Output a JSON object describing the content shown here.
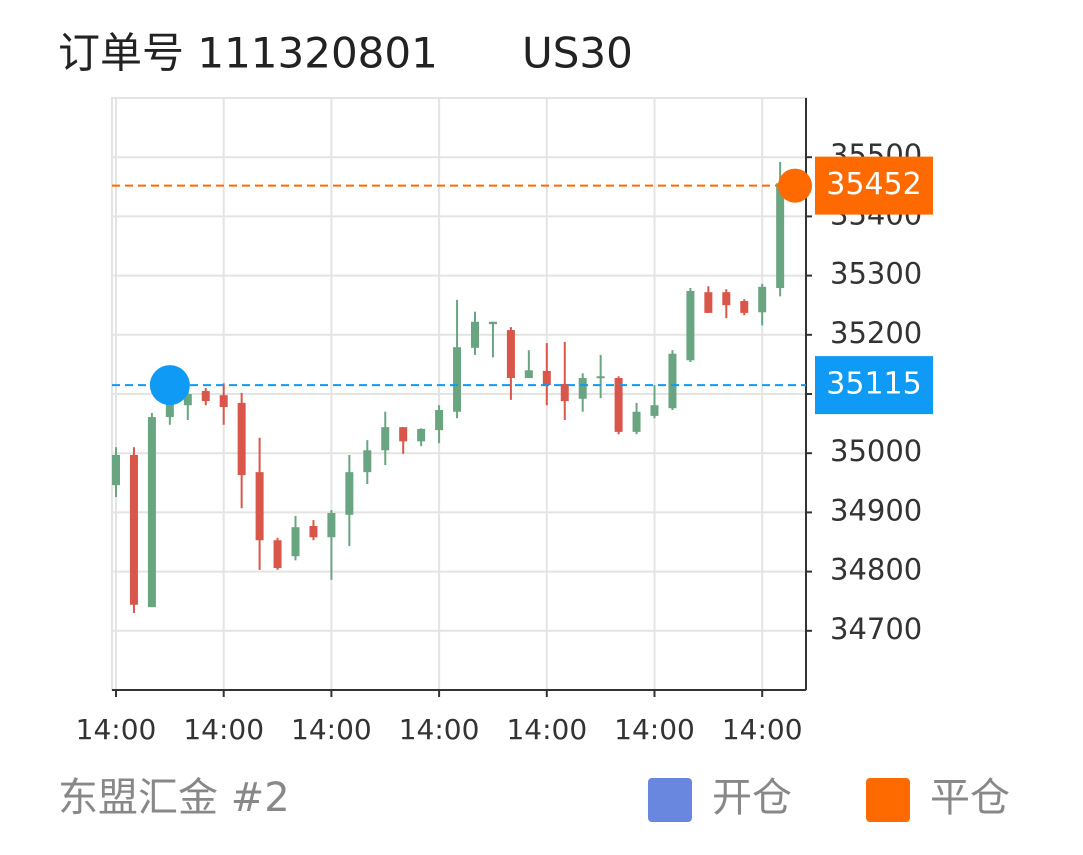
{
  "chart_data": {
    "type": "candlestick",
    "title": "订单号 111320801",
    "symbol": "US30",
    "footer": "东盟汇金 #2",
    "categories": [
      "14:00",
      null,
      null,
      null,
      null,
      null,
      "14:00",
      null,
      null,
      null,
      null,
      null,
      "14:00",
      null,
      null,
      null,
      null,
      null,
      "14:00",
      null,
      null,
      null,
      null,
      null,
      "14:00",
      null,
      null,
      null,
      null,
      null,
      "14:00",
      null,
      null,
      null,
      null,
      null,
      "14:00",
      null
    ],
    "open": [
      34946,
      34997,
      34740,
      35061,
      35081,
      35105,
      35098,
      35085,
      34968,
      34853,
      34826,
      34877,
      34858,
      34896,
      34968,
      35005,
      35044,
      35020,
      35039,
      35070,
      35178,
      35218,
      35208,
      35127,
      35139,
      35117,
      35092,
      35127,
      35127,
      35036,
      35063,
      35076,
      35157,
      35272,
      35272,
      35257,
      35238,
      35279
    ],
    "high": [
      35010,
      35010,
      35068,
      35095,
      35110,
      35110,
      35118,
      35102,
      35026,
      34857,
      34894,
      34887,
      34904,
      34997,
      35022,
      35070,
      35044,
      35042,
      35081,
      35259,
      35239,
      35222,
      35213,
      35174,
      35186,
      35188,
      35135,
      35166,
      35130,
      35085,
      35115,
      35174,
      35279,
      35282,
      35277,
      35260,
      35286,
      35492
    ],
    "low": [
      34926,
      34730,
      34740,
      35048,
      35056,
      35081,
      35048,
      34907,
      34803,
      34803,
      34819,
      34853,
      34786,
      34843,
      34948,
      34980,
      34999,
      35012,
      35017,
      35059,
      35166,
      35162,
      35090,
      35127,
      35081,
      35056,
      35070,
      35093,
      35032,
      35032,
      35059,
      35073,
      35154,
      35237,
      35228,
      35233,
      35216,
      35265
    ],
    "close": [
      34997,
      34744,
      35061,
      35085,
      35100,
      35088,
      35078,
      34963,
      34853,
      34806,
      34875,
      34858,
      34899,
      34968,
      35005,
      35044,
      35020,
      35041,
      35073,
      35179,
      35222,
      35222,
      35127,
      35140,
      35115,
      35088,
      35127,
      35130,
      35036,
      35070,
      35081,
      35168,
      35274,
      35237,
      35250,
      35237,
      35281,
      35456
    ],
    "up_color": "#6aa582",
    "down_color": "#d9574a",
    "ylim": [
      34600,
      35600
    ],
    "yticks": [
      34700,
      34800,
      34900,
      35000,
      35100,
      35200,
      35300,
      35400,
      35500
    ],
    "grid": true,
    "open_price": 35115,
    "close_price": 35452,
    "open_color": "#0f9af5",
    "close_color": "#ff6a00",
    "legend": [
      {
        "name": "开仓",
        "color": "#6a87e0"
      },
      {
        "name": "平仓",
        "color": "#ff6a00"
      }
    ]
  }
}
